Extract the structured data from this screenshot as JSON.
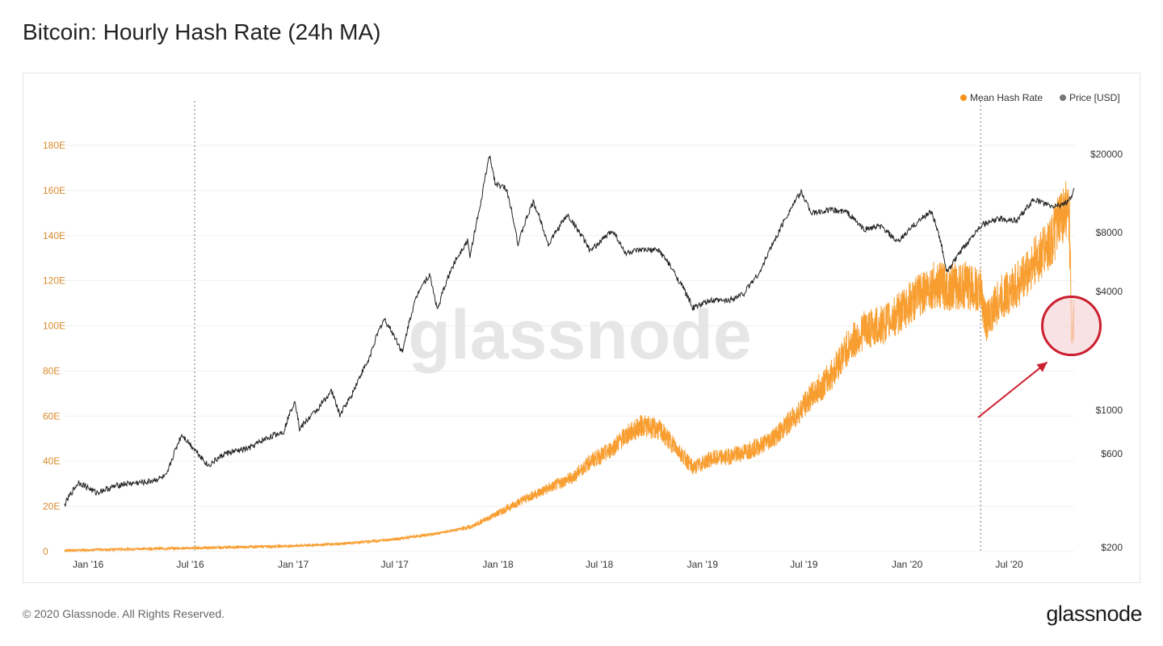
{
  "header": {
    "title": "Bitcoin: Hourly Hash Rate (24h MA)"
  },
  "footer": {
    "copyright": "© 2020 Glassnode. All Rights Reserved.",
    "brand": "glassnode"
  },
  "watermark": "glassnode",
  "colors": {
    "hash": "#f7931a",
    "price": "#222222",
    "highlight": "#cc1f2f",
    "highlight_fill": "#f6d6d9"
  },
  "chart_data": {
    "type": "line",
    "title": "Bitcoin: Hourly Hash Rate (24h MA)",
    "legend": {
      "position": "top-right",
      "entries": [
        "Mean Hash Rate",
        "Price [USD]"
      ]
    },
    "x_ticks": [
      "Jan '16",
      "Jul '16",
      "Jan '17",
      "Jul '17",
      "Jan '18",
      "Jul '18",
      "Jan '19",
      "Jul '19",
      "Jan '20",
      "Jul '20"
    ],
    "x_range": [
      "2015-11-20",
      "2020-10-25"
    ],
    "y_left": {
      "label": "",
      "ticks": [
        "0",
        "20E",
        "40E",
        "60E",
        "80E",
        "100E",
        "120E",
        "140E",
        "160E",
        "180E"
      ],
      "range": [
        0,
        180
      ]
    },
    "y_right": {
      "label": "",
      "scale": "log",
      "ticks": [
        "$200",
        "$600",
        "$1000",
        "$4000",
        "$8000",
        "$20000"
      ],
      "values": [
        200,
        600,
        1000,
        4000,
        8000,
        20000
      ]
    },
    "event_lines": [
      "2016-07-09",
      "2020-05-11"
    ],
    "highlight": {
      "date": "2020-10-20",
      "hash_rate": 100,
      "shape": "circle",
      "arrow": true
    },
    "series": [
      {
        "name": "Mean Hash Rate",
        "axis": "left",
        "color": "#f7931a",
        "points": [
          [
            "2015-11-20",
            0.5
          ],
          [
            "2016-01-01",
            0.7
          ],
          [
            "2016-04-01",
            1.2
          ],
          [
            "2016-07-01",
            1.5
          ],
          [
            "2016-10-01",
            2.0
          ],
          [
            "2017-01-01",
            2.5
          ],
          [
            "2017-04-01",
            3.5
          ],
          [
            "2017-07-01",
            5.5
          ],
          [
            "2017-09-15",
            8.0
          ],
          [
            "2017-11-15",
            11.0
          ],
          [
            "2018-01-01",
            17
          ],
          [
            "2018-02-15",
            23
          ],
          [
            "2018-04-01",
            28
          ],
          [
            "2018-05-15",
            33
          ],
          [
            "2018-06-15",
            40
          ],
          [
            "2018-07-15",
            44
          ],
          [
            "2018-08-15",
            51
          ],
          [
            "2018-09-15",
            56
          ],
          [
            "2018-10-15",
            54
          ],
          [
            "2018-11-15",
            46
          ],
          [
            "2018-12-15",
            37
          ],
          [
            "2019-01-15",
            41
          ],
          [
            "2019-02-15",
            42
          ],
          [
            "2019-03-15",
            44
          ],
          [
            "2019-04-15",
            47
          ],
          [
            "2019-05-15",
            52
          ],
          [
            "2019-06-15",
            60
          ],
          [
            "2019-07-15",
            69
          ],
          [
            "2019-08-15",
            77
          ],
          [
            "2019-09-15",
            90
          ],
          [
            "2019-10-15",
            98
          ],
          [
            "2019-11-15",
            100
          ],
          [
            "2019-12-15",
            105
          ],
          [
            "2020-01-15",
            112
          ],
          [
            "2020-02-15",
            118
          ],
          [
            "2020-03-15",
            117
          ],
          [
            "2020-04-15",
            118
          ],
          [
            "2020-05-11",
            115
          ],
          [
            "2020-05-20",
            102
          ],
          [
            "2020-06-15",
            112
          ],
          [
            "2020-07-15",
            118
          ],
          [
            "2020-08-15",
            128
          ],
          [
            "2020-09-15",
            138
          ],
          [
            "2020-10-01",
            148
          ],
          [
            "2020-10-10",
            152
          ],
          [
            "2020-10-16",
            145
          ],
          [
            "2020-10-20",
            100
          ],
          [
            "2020-10-25",
            103
          ]
        ]
      },
      {
        "name": "Price [USD]",
        "axis": "right",
        "color": "#222222",
        "points": [
          [
            "2015-11-20",
            330
          ],
          [
            "2015-12-15",
            430
          ],
          [
            "2016-01-15",
            380
          ],
          [
            "2016-03-01",
            420
          ],
          [
            "2016-04-15",
            430
          ],
          [
            "2016-05-20",
            460
          ],
          [
            "2016-06-16",
            750
          ],
          [
            "2016-07-01",
            670
          ],
          [
            "2016-08-02",
            520
          ],
          [
            "2016-09-01",
            600
          ],
          [
            "2016-10-15",
            640
          ],
          [
            "2016-11-15",
            720
          ],
          [
            "2016-12-15",
            780
          ],
          [
            "2017-01-04",
            1120
          ],
          [
            "2017-01-12",
            800
          ],
          [
            "2017-02-15",
            1020
          ],
          [
            "2017-03-10",
            1250
          ],
          [
            "2017-03-25",
            940
          ],
          [
            "2017-04-15",
            1190
          ],
          [
            "2017-05-15",
            1780
          ],
          [
            "2017-06-12",
            2900
          ],
          [
            "2017-07-15",
            1950
          ],
          [
            "2017-08-15",
            4200
          ],
          [
            "2017-09-01",
            4850
          ],
          [
            "2017-09-15",
            3200
          ],
          [
            "2017-10-15",
            5600
          ],
          [
            "2017-11-08",
            7300
          ],
          [
            "2017-11-12",
            5900
          ],
          [
            "2017-12-01",
            10800
          ],
          [
            "2017-12-17",
            19500
          ],
          [
            "2017-12-28",
            14000
          ],
          [
            "2018-01-15",
            13500
          ],
          [
            "2018-02-06",
            6900
          ],
          [
            "2018-03-05",
            11400
          ],
          [
            "2018-04-01",
            6900
          ],
          [
            "2018-05-05",
            9800
          ],
          [
            "2018-06-15",
            6400
          ],
          [
            "2018-07-25",
            8200
          ],
          [
            "2018-08-15",
            6300
          ],
          [
            "2018-09-15",
            6500
          ],
          [
            "2018-10-15",
            6500
          ],
          [
            "2018-11-19",
            4600
          ],
          [
            "2018-12-15",
            3300
          ],
          [
            "2019-01-15",
            3600
          ],
          [
            "2019-02-15",
            3600
          ],
          [
            "2019-03-15",
            3900
          ],
          [
            "2019-04-15",
            5100
          ],
          [
            "2019-05-15",
            7800
          ],
          [
            "2019-06-26",
            12800
          ],
          [
            "2019-07-15",
            10000
          ],
          [
            "2019-08-15",
            10400
          ],
          [
            "2019-09-15",
            10200
          ],
          [
            "2019-10-15",
            8300
          ],
          [
            "2019-11-15",
            8600
          ],
          [
            "2019-12-15",
            7100
          ],
          [
            "2020-01-15",
            8800
          ],
          [
            "2020-02-13",
            10300
          ],
          [
            "2020-03-12",
            5000
          ],
          [
            "2020-04-15",
            6900
          ],
          [
            "2020-05-11",
            8700
          ],
          [
            "2020-06-15",
            9400
          ],
          [
            "2020-07-15",
            9200
          ],
          [
            "2020-08-15",
            11800
          ],
          [
            "2020-09-15",
            10800
          ],
          [
            "2020-10-15",
            11400
          ],
          [
            "2020-10-25",
            13100
          ]
        ]
      }
    ]
  }
}
